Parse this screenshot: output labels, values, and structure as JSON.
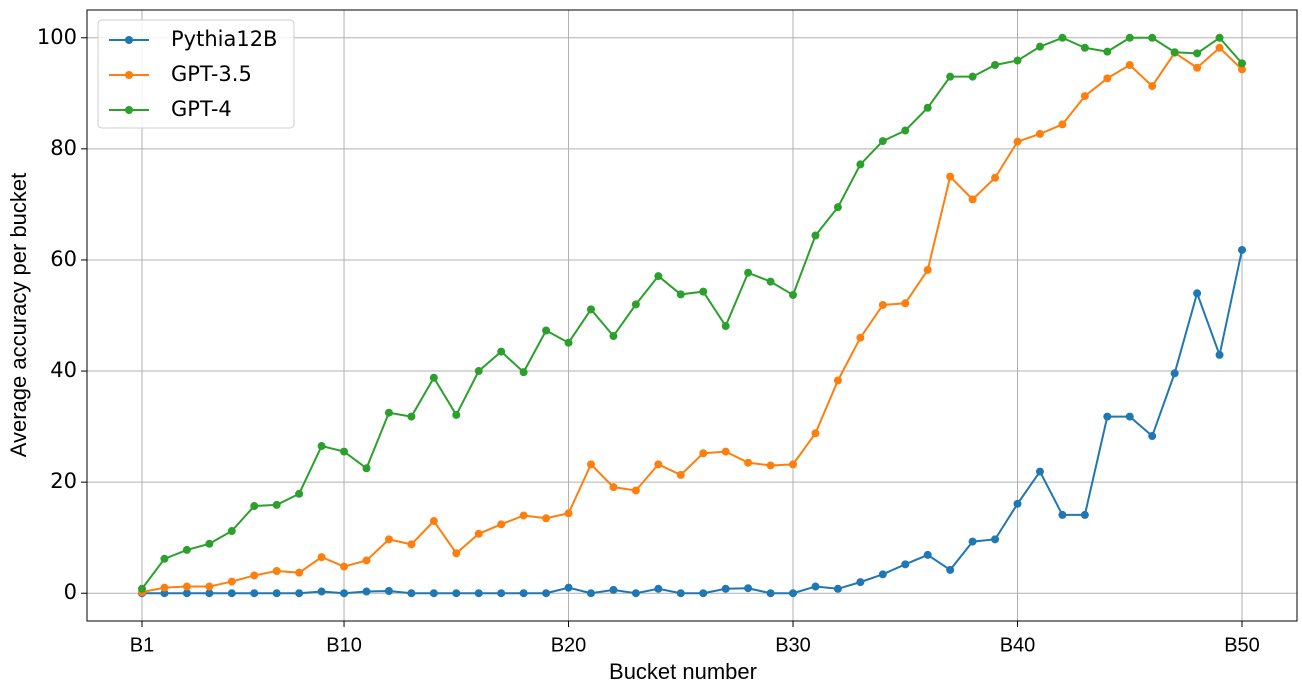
{
  "chart_data": {
    "type": "line",
    "x_label": "Bucket number",
    "y_label": "Average accuracy per bucket",
    "categories": [
      "B1",
      null,
      null,
      null,
      null,
      null,
      null,
      null,
      null,
      "B10",
      null,
      null,
      null,
      null,
      null,
      null,
      null,
      null,
      null,
      "B20",
      null,
      null,
      null,
      null,
      null,
      null,
      null,
      null,
      null,
      "B30",
      null,
      null,
      null,
      null,
      null,
      null,
      null,
      null,
      null,
      "B40",
      null,
      null,
      null,
      null,
      null,
      null,
      null,
      null,
      null,
      "B50"
    ],
    "series": [
      {
        "name": "Pythia12B",
        "color": "#1f77b4",
        "values": [
          0,
          0,
          0,
          0,
          0,
          0,
          0,
          0,
          0.3,
          0,
          0.3,
          0.4,
          0,
          0,
          0,
          0,
          0,
          0,
          0,
          1.0,
          0,
          0.6,
          0,
          0.8,
          0,
          0,
          0.8,
          0.9,
          0,
          0,
          1.2,
          0.8,
          2.0,
          3.4,
          5.2,
          6.9,
          4.2,
          9.3,
          9.7,
          16.1,
          21.9,
          14.1,
          14.1,
          31.8,
          31.8,
          28.3,
          39.6,
          54.0,
          42.9,
          61.8
        ]
      },
      {
        "name": "GPT-3.5",
        "color": "#ff7f0e",
        "values": [
          0.2,
          1.0,
          1.2,
          1.2,
          2.1,
          3.2,
          4.0,
          3.7,
          6.5,
          4.8,
          5.9,
          9.7,
          8.8,
          13.0,
          7.2,
          10.7,
          12.4,
          14.0,
          13.5,
          14.4,
          23.2,
          19.1,
          18.5,
          23.2,
          21.3,
          25.2,
          25.5,
          23.5,
          23.0,
          23.2,
          28.8,
          38.3,
          46.0,
          51.9,
          52.2,
          58.2,
          75.0,
          70.9,
          74.8,
          81.3,
          82.7,
          84.4,
          89.5,
          92.7,
          95.1,
          91.3,
          97.3,
          94.6,
          98.2,
          94.3
        ]
      },
      {
        "name": "GPT-4",
        "color": "#2ca02c",
        "values": [
          0.8,
          6.2,
          7.8,
          8.9,
          11.2,
          15.7,
          15.9,
          17.9,
          26.5,
          25.5,
          22.5,
          32.5,
          31.8,
          38.8,
          32.1,
          40.0,
          43.5,
          39.8,
          47.3,
          45.1,
          51.1,
          46.3,
          52.0,
          57.1,
          53.8,
          54.3,
          48.1,
          57.7,
          56.1,
          53.7,
          64.4,
          69.5,
          77.2,
          81.4,
          83.3,
          87.4,
          93.0,
          93.0,
          95.1,
          95.9,
          98.4,
          100.0,
          98.2,
          97.5,
          100.0,
          100.0,
          97.4,
          97.2,
          100.0,
          95.4
        ]
      }
    ],
    "ylim": [
      -5,
      105
    ],
    "yticks": [
      0,
      20,
      40,
      60,
      80,
      100
    ],
    "grid": true,
    "legend": "upper-left"
  }
}
